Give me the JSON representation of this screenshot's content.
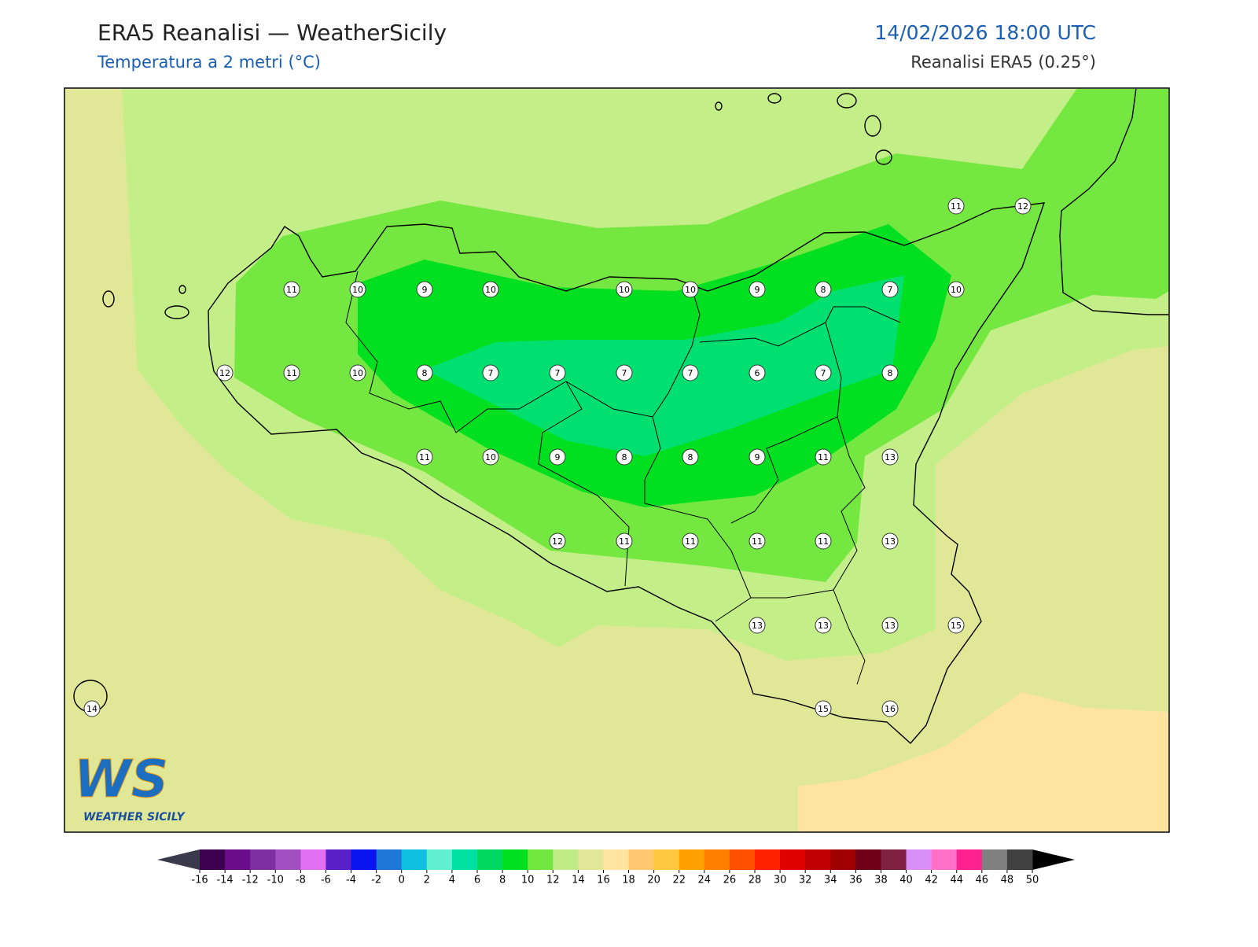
{
  "header": {
    "title": "ERA5 Reanalisi — WeatherSicily",
    "subtitle": "Temperatura a 2 metri (°C)",
    "datetime": "14/02/2026 18:00 UTC",
    "source": "Reanalisi ERA5 (0.25°)"
  },
  "stations": {
    "values": [
      11,
      12,
      11,
      10,
      9,
      10,
      10,
      10,
      9,
      8,
      7,
      10,
      12,
      11,
      10,
      8,
      7,
      7,
      7,
      7,
      6,
      7,
      8,
      11,
      10,
      9,
      8,
      8,
      9,
      11,
      13,
      12,
      11,
      11,
      11,
      11,
      13,
      13,
      13,
      13,
      15,
      14,
      15,
      16
    ]
  },
  "logo": {
    "letters": "WS",
    "text": "WEATHER SICILY"
  },
  "colorbar": {
    "ticks": [
      -16,
      -14,
      -12,
      -10,
      -8,
      -6,
      -4,
      -2,
      0,
      2,
      4,
      6,
      8,
      10,
      12,
      14,
      16,
      18,
      20,
      22,
      24,
      26,
      28,
      30,
      32,
      34,
      36,
      38,
      40,
      42,
      44,
      46,
      48,
      50
    ],
    "colors": [
      "#3d0050",
      "#6a0d8a",
      "#7e2fa0",
      "#a050c0",
      "#e070f0",
      "#5a20c8",
      "#0a14f0",
      "#1e78d8",
      "#10c0e0",
      "#60f0d0",
      "#00e0a0",
      "#00d860",
      "#00e020",
      "#70e840",
      "#c0ec88",
      "#e0e898",
      "#ffe4a0",
      "#ffc870",
      "#ffc840",
      "#ffa000",
      "#ff8000",
      "#ff5000",
      "#ff2000",
      "#e00000",
      "#c00000",
      "#a00000",
      "#700018",
      "#802040",
      "#d890f8",
      "#ff70c8",
      "#ff2090",
      "#808080",
      "#404040"
    ],
    "under_color": "#3a3a4a",
    "over_color": "#000000"
  }
}
